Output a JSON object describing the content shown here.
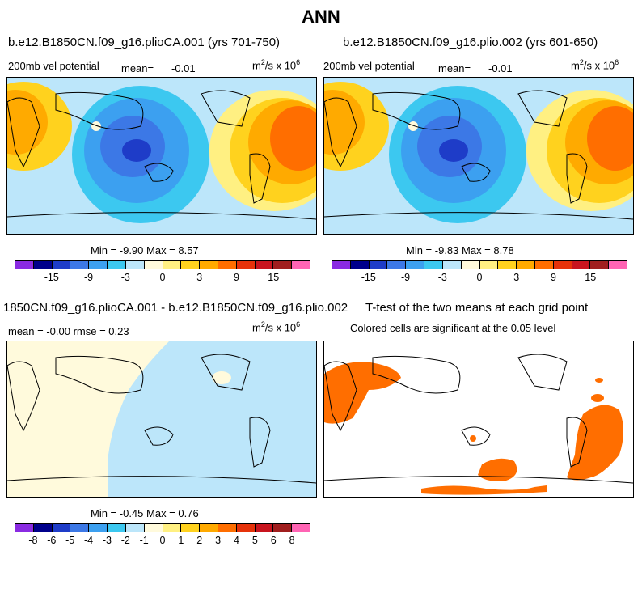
{
  "title": "ANN",
  "panels": [
    {
      "case": "b.e12.B1850CN.f09_g16.plioCA.001 (yrs 701-750)",
      "field": "200mb vel potential",
      "mean_label": "mean=",
      "mean": "-0.01",
      "units": "m²/s x 10⁶",
      "min_max": "Min =  -9.90 Max =   8.57"
    },
    {
      "case": "b.e12.B1850CN.f09_g16.plio.002 (yrs 601-650)",
      "field": "200mb vel potential",
      "mean_label": "mean=",
      "mean": "-0.01",
      "units": "m²/s x 10⁶",
      "min_max": "Min =  -9.83 Max =   8.78"
    },
    {
      "case": "1850CN.f09_g16.plioCA.001 - b.e12.B1850CN.f09_g16.plio.002",
      "stats": "mean =  -0.00    rmse =    0.23",
      "units": "m²/s x 10⁶",
      "min_max": "Min =  -0.45 Max =   0.76"
    },
    {
      "case": "T-test of the two means at each grid point",
      "note": "Colored cells are significant at the 0.05 level"
    }
  ],
  "colorbar_main": {
    "colors": [
      "#8a2be2",
      "#00008b",
      "#1e3cc8",
      "#3c78e6",
      "#3ca0f0",
      "#3cc8f0",
      "#bce6fa",
      "#fffadc",
      "#fff082",
      "#ffd21e",
      "#ffaa00",
      "#ff6e00",
      "#e6320a",
      "#c8141e",
      "#a01e1e",
      "#ff64b4"
    ],
    "ticks": [
      "-15",
      "-9",
      "-3",
      "0",
      "3",
      "9",
      "15"
    ]
  },
  "colorbar_diff": {
    "colors": [
      "#8a2be2",
      "#00008b",
      "#1e3cc8",
      "#3c78e6",
      "#3ca0f0",
      "#3cc8f0",
      "#bce6fa",
      "#fffadc",
      "#fff082",
      "#ffd21e",
      "#ffaa00",
      "#ff6e00",
      "#e6320a",
      "#c8141e",
      "#a01e1e",
      "#ff64b4"
    ],
    "ticks": [
      "-8",
      "-6",
      "-5",
      "-4",
      "-3",
      "-2",
      "-1",
      "0",
      "1",
      "2",
      "3",
      "4",
      "5",
      "6",
      "8"
    ]
  },
  "significance_color": "#ff6e00"
}
